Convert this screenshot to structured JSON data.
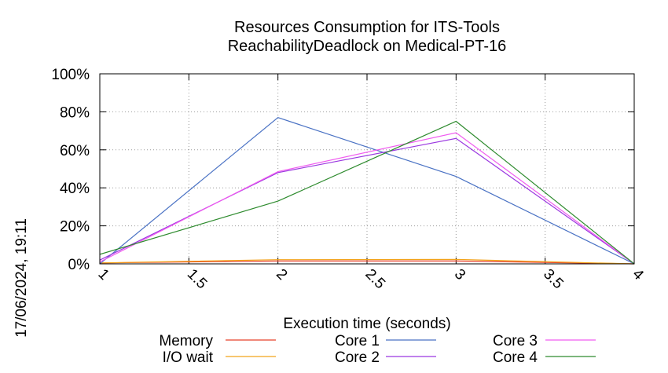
{
  "chart_data": {
    "type": "line",
    "title": [
      "Resources Consumption for ITS-Tools",
      "ReachabilityDeadlock on Medical-PT-16"
    ],
    "xlabel": "Execution time (seconds)",
    "ylabel": "",
    "side_label": "17/06/2024, 19:11",
    "xlim": [
      1,
      4
    ],
    "ylim": [
      0,
      100
    ],
    "x_ticks": [
      1,
      1.5,
      2,
      2.5,
      3,
      3.5,
      4
    ],
    "x_tick_labels": [
      "1",
      "1.5",
      "2",
      "2.5",
      "3",
      "3.5",
      "4"
    ],
    "y_ticks": [
      0,
      20,
      40,
      60,
      80,
      100
    ],
    "y_tick_labels": [
      "0%",
      "20%",
      "40%",
      "60%",
      "80%",
      "100%"
    ],
    "grid": true,
    "legend_position": "bottom",
    "series": [
      {
        "name": "Memory",
        "color": "#e8412b",
        "x": [
          1,
          2,
          3,
          4
        ],
        "y": [
          0.5,
          1.5,
          1.5,
          0
        ]
      },
      {
        "name": "I/O wait",
        "color": "#f2a31a",
        "x": [
          1,
          2,
          3,
          4
        ],
        "y": [
          0.5,
          2.2,
          2.3,
          0
        ]
      },
      {
        "name": "Core 1",
        "color": "#4a72c4",
        "x": [
          1,
          2,
          3,
          4
        ],
        "y": [
          0,
          77,
          46,
          0
        ]
      },
      {
        "name": "Core 2",
        "color": "#9b38e0",
        "x": [
          1,
          2,
          3,
          4
        ],
        "y": [
          2,
          48,
          66,
          0
        ]
      },
      {
        "name": "Core 3",
        "color": "#f05cf0",
        "x": [
          1,
          2,
          3,
          4
        ],
        "y": [
          1,
          48.5,
          69,
          0
        ]
      },
      {
        "name": "Core 4",
        "color": "#2e8b2e",
        "x": [
          1,
          2,
          3,
          4
        ],
        "y": [
          5,
          33,
          75,
          0
        ]
      }
    ]
  }
}
